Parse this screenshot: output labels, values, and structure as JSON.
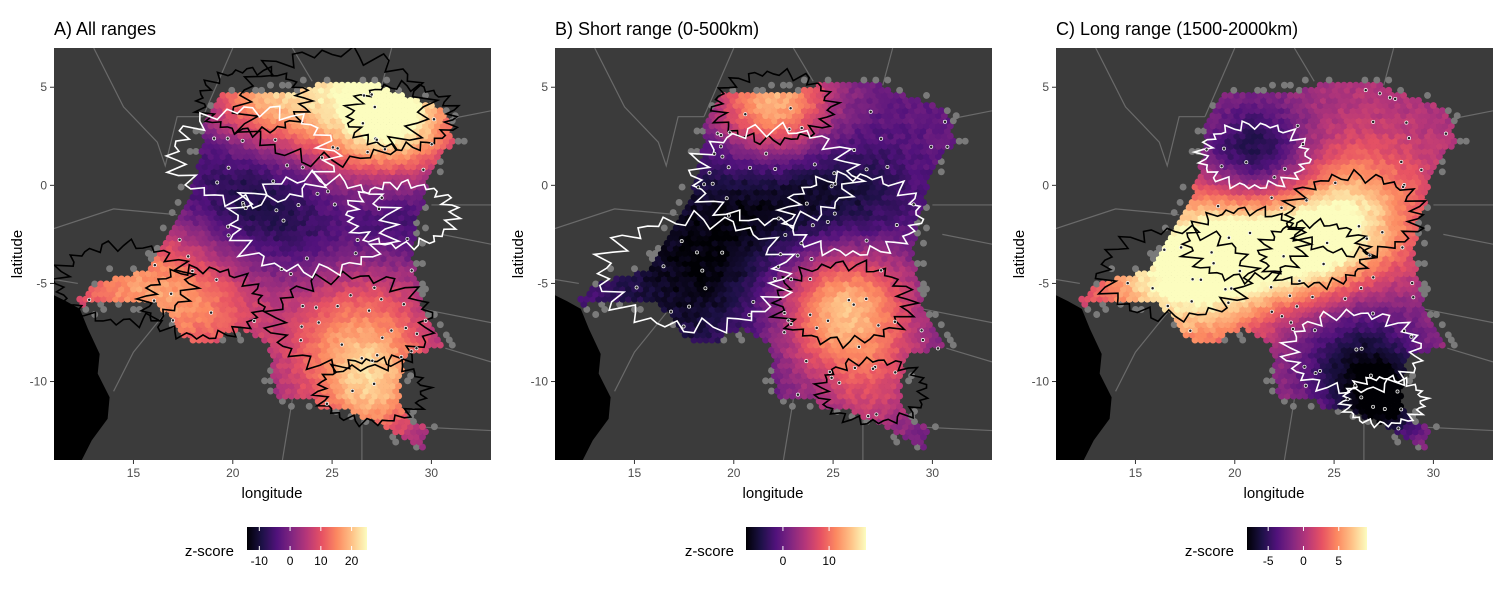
{
  "colors": {
    "panel_bg": "#3b3b3b",
    "ocean": "#000000",
    "borders": "#6a6a6a",
    "na_hex": "#7a7a7a",
    "outline_high": "#000000",
    "outline_low": "#ffffff",
    "scale": [
      "#000004",
      "#1d1147",
      "#51127c",
      "#822681",
      "#b73779",
      "#e75263",
      "#fc8961",
      "#fec287",
      "#fcfdbf"
    ]
  },
  "x_axis": {
    "label": "longitude",
    "ticks": [
      15,
      20,
      25,
      30
    ],
    "range": [
      11,
      33
    ]
  },
  "y_axis": {
    "label": "latitude",
    "ticks": [
      5,
      0,
      -5,
      -10
    ],
    "range": [
      -14,
      7
    ]
  },
  "panels": [
    {
      "title": "A) All ranges",
      "legend": {
        "title": "z-score",
        "ticks": [
          -10,
          0,
          10,
          20
        ],
        "range": [
          -14,
          25
        ]
      },
      "hotspots": [
        {
          "lon": 25,
          "lat": 4,
          "z": 24,
          "r": 3.5
        },
        {
          "lon": 21,
          "lat": 4.3,
          "z": 14,
          "r": 2.0
        },
        {
          "lon": 28.5,
          "lat": 3.5,
          "z": 16,
          "r": 2.0
        },
        {
          "lon": 14.5,
          "lat": -5,
          "z": 14,
          "r": 2.5
        },
        {
          "lon": 18.5,
          "lat": -6,
          "z": 12,
          "r": 2.2
        },
        {
          "lon": 26,
          "lat": -7,
          "z": 15,
          "r": 3.0
        },
        {
          "lon": 27,
          "lat": -10.5,
          "z": 14,
          "r": 2.0
        },
        {
          "lon": 21,
          "lat": 1.5,
          "z": -13,
          "r": 3.0
        },
        {
          "lon": 24,
          "lat": -2,
          "z": -10,
          "r": 3.0
        },
        {
          "lon": 28.5,
          "lat": -1.5,
          "z": -8,
          "r": 2.0
        }
      ]
    },
    {
      "title": "B) Short range (0-500km)",
      "legend": {
        "title": "z-score",
        "ticks": [
          0,
          10
        ],
        "range": [
          -8,
          18
        ]
      },
      "hotspots": [
        {
          "lon": 22,
          "lat": 4,
          "z": 17,
          "r": 2.2
        },
        {
          "lon": 25.5,
          "lat": -6,
          "z": 16,
          "r": 2.5
        },
        {
          "lon": 18,
          "lat": -4.5,
          "z": -7,
          "r": 3.5
        },
        {
          "lon": 22,
          "lat": 0.5,
          "z": -6,
          "r": 3.0
        },
        {
          "lon": 26,
          "lat": -1.5,
          "z": -5,
          "r": 2.5
        },
        {
          "lon": 27,
          "lat": -10.5,
          "z": 5,
          "r": 2.0
        }
      ]
    },
    {
      "title": "C) Long range (1500-2000km)",
      "legend": {
        "title": "z-score",
        "ticks": [
          -5,
          0,
          5
        ],
        "range": [
          -8,
          9
        ]
      },
      "hotspots": [
        {
          "lon": 17,
          "lat": -4.5,
          "z": 9,
          "r": 2.8
        },
        {
          "lon": 20.5,
          "lat": -3,
          "z": 8,
          "r": 2.2
        },
        {
          "lon": 26,
          "lat": -1.5,
          "z": 7,
          "r": 2.5
        },
        {
          "lon": 24,
          "lat": -3.5,
          "z": 6,
          "r": 2.0
        },
        {
          "lon": 21,
          "lat": 1.5,
          "z": -7,
          "r": 2.0
        },
        {
          "lon": 26,
          "lat": -8.5,
          "z": -6,
          "r": 2.5
        },
        {
          "lon": 27.5,
          "lat": -11,
          "z": -7,
          "r": 1.5
        }
      ]
    }
  ]
}
